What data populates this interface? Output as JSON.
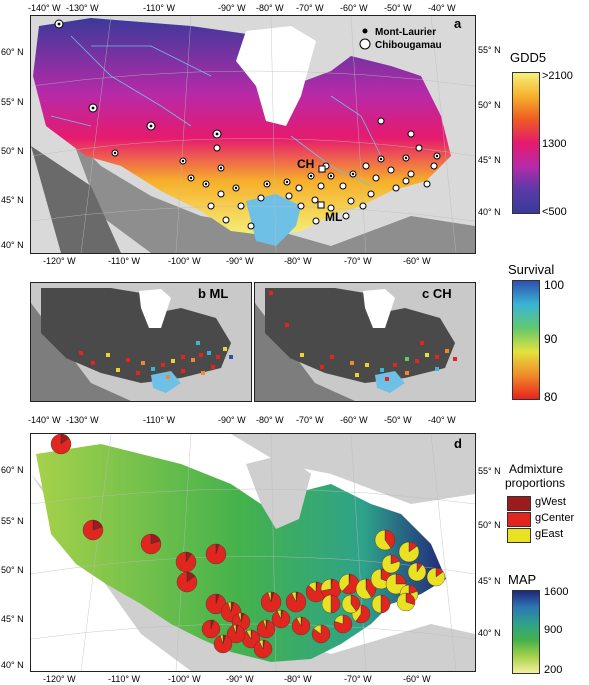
{
  "panels": {
    "a": {
      "label": "a"
    },
    "b": {
      "label": "b ML"
    },
    "c": {
      "label": "c CH"
    },
    "d": {
      "label": "d"
    }
  },
  "top_lon_labels": [
    "-140° W",
    "-130° W",
    "-110° W",
    "-90° W",
    "-80° W",
    "-70° W",
    "-60° W",
    "-50° W",
    "-40° W"
  ],
  "bottom_lon_labels": [
    "-120° W",
    "-110° W",
    "-100° W",
    "-90° W",
    "-80° W",
    "-70° W",
    "-60° W"
  ],
  "left_lat_labels": [
    "60° N",
    "55° N",
    "50° N",
    "45° N",
    "40° N"
  ],
  "right_lat_labels": [
    "55° N",
    "50° N",
    "45° N",
    "40° N"
  ],
  "panel_a": {
    "legend_points": [
      {
        "label": "Mont-Laurier",
        "symbol": "filled-dot"
      },
      {
        "label": "Chibougamau",
        "symbol": "open-circle"
      }
    ],
    "site_labels": {
      "ch": "CH",
      "ml": "ML"
    }
  },
  "gdd_legend": {
    "title": "GDD5",
    "max_label": ">2100",
    "mid_label": "1300",
    "min_label": "<500",
    "colors": [
      "#f5f07a",
      "#f6b02a",
      "#ee5a24",
      "#e61a6e",
      "#b72aa8",
      "#5a3aa8",
      "#3a3a9a"
    ]
  },
  "survival_legend": {
    "title": "Survival",
    "labels": [
      "100",
      "90",
      "80"
    ],
    "colors": [
      "#2e4fae",
      "#39b5d6",
      "#62c86e",
      "#e4e23d",
      "#f08a2a",
      "#e8231d"
    ]
  },
  "admixture_legend": {
    "title_line1": "Admixture",
    "title_line2": "proportions",
    "items": [
      {
        "label": "gWest",
        "color": "#9b1c1c"
      },
      {
        "label": "gCenter",
        "color": "#e0261f"
      },
      {
        "label": "gEast",
        "color": "#e9e223"
      }
    ]
  },
  "map_legend": {
    "title": "MAP",
    "labels": [
      "1600",
      "900",
      "200"
    ],
    "colors": [
      "#22257a",
      "#2d77b5",
      "#2ea28a",
      "#44b24c",
      "#a6d14a",
      "#f3f1a0"
    ]
  }
}
